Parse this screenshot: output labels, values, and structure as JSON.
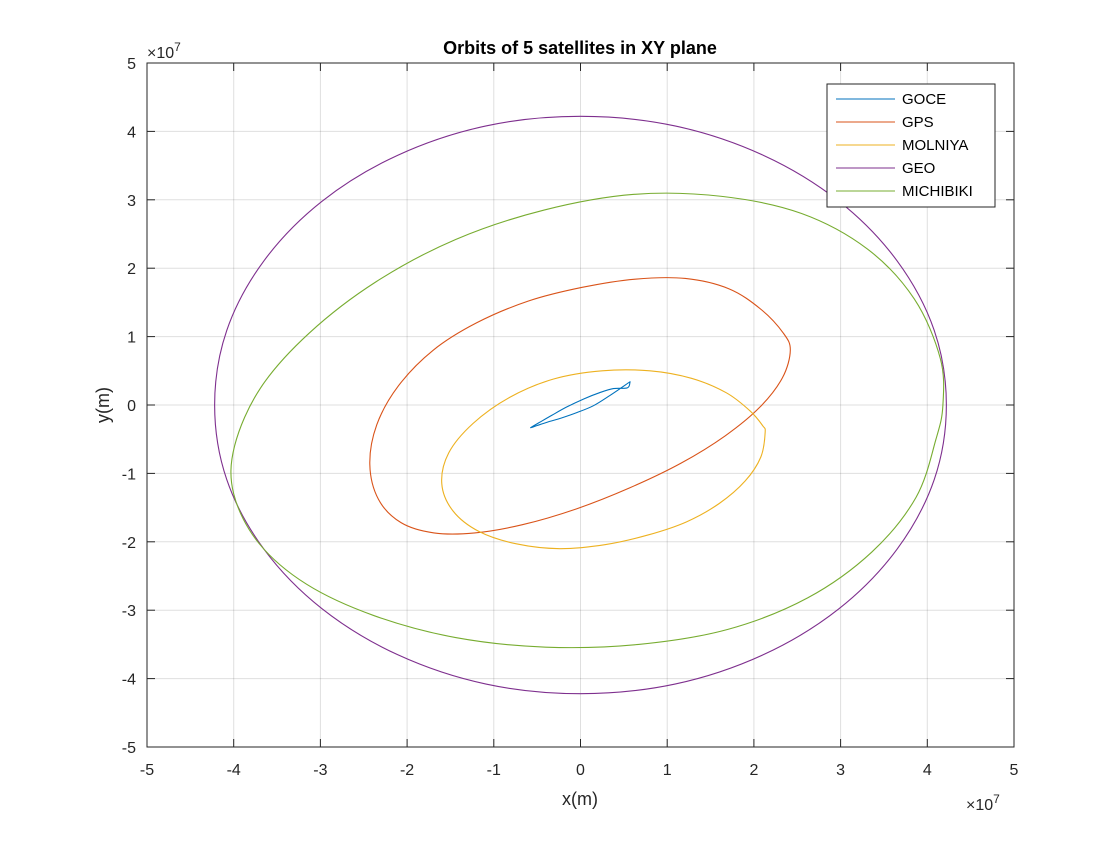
{
  "chart_data": {
    "type": "line",
    "title": "Orbits of 5 satellites in XY plane",
    "xlabel": "x(m)",
    "ylabel": "y(m)",
    "xlim": [
      -5,
      5
    ],
    "ylim": [
      -5,
      5
    ],
    "axis_scale_label": "×10",
    "axis_scale_exponent": "7",
    "x_ticks": [
      "-5",
      "-4",
      "-3",
      "-2",
      "-1",
      "0",
      "1",
      "2",
      "3",
      "4",
      "5"
    ],
    "y_ticks": [
      "-5",
      "-4",
      "-3",
      "-2",
      "-1",
      "0",
      "1",
      "2",
      "3",
      "4",
      "5"
    ],
    "grid": true,
    "legend_position": "top-right",
    "series": [
      {
        "name": "GOCE",
        "color": "#0072BD",
        "x": [
          0.54,
          0.57,
          0.56,
          0.48,
          0.34,
          0.15,
          -0.04,
          -0.22,
          -0.38,
          -0.5,
          -0.57,
          -0.56,
          -0.48,
          -0.33,
          -0.16,
          0.04,
          0.22,
          0.38,
          0.54
        ],
        "y": [
          0.25,
          0.33,
          0.33,
          0.26,
          0.14,
          -0.01,
          -0.11,
          -0.19,
          -0.25,
          -0.3,
          -0.33,
          -0.32,
          -0.26,
          -0.15,
          -0.03,
          0.09,
          0.18,
          0.24,
          0.25
        ]
      },
      {
        "name": "GPS",
        "color": "#D95319",
        "x": [
          2.42,
          2.33,
          2.07,
          1.67,
          1.16,
          0.57,
          -0.05,
          -0.67,
          -1.22,
          -1.69,
          -2.07,
          -2.33,
          -2.43,
          -2.35,
          -2.1,
          -1.7,
          -1.2,
          -0.6,
          0.02,
          0.63,
          1.21,
          1.71,
          2.08,
          2.34,
          2.42
        ],
        "y": [
          0.8,
          0.4,
          -0.03,
          -0.45,
          -0.85,
          -1.21,
          -1.52,
          -1.75,
          -1.87,
          -1.87,
          -1.72,
          -1.38,
          -0.87,
          -0.29,
          0.28,
          0.8,
          1.2,
          1.52,
          1.72,
          1.84,
          1.85,
          1.7,
          1.4,
          1.05,
          0.8
        ]
      },
      {
        "name": "MOLNIYA",
        "color": "#EDB120",
        "x": [
          2.13,
          2.08,
          1.9,
          1.6,
          1.22,
          0.78,
          0.29,
          -0.24,
          -0.74,
          -1.17,
          -1.47,
          -1.6,
          -1.52,
          -1.24,
          -0.82,
          -0.31,
          0.25,
          0.8,
          1.28,
          1.68,
          1.95,
          2.1,
          2.13
        ],
        "y": [
          -0.4,
          -0.76,
          -1.11,
          -1.44,
          -1.71,
          -1.9,
          -2.04,
          -2.1,
          -2.03,
          -1.85,
          -1.55,
          -1.15,
          -0.7,
          -0.27,
          0.11,
          0.38,
          0.5,
          0.5,
          0.39,
          0.18,
          -0.08,
          -0.3,
          -0.4
        ]
      },
      {
        "name": "GEO",
        "color": "#7E2F8E",
        "x": [
          4.22,
          4.08,
          3.65,
          2.98,
          2.11,
          1.09,
          0.0,
          -1.09,
          -2.11,
          -2.98,
          -3.65,
          -4.08,
          -4.22,
          -4.08,
          -3.65,
          -2.98,
          -2.11,
          -1.09,
          0.0,
          1.09,
          2.11,
          2.98,
          3.65,
          4.08,
          4.22
        ],
        "y": [
          0.0,
          -1.09,
          -2.11,
          -2.98,
          -3.65,
          -4.08,
          -4.22,
          -4.08,
          -3.65,
          -2.98,
          -2.11,
          -1.09,
          0.0,
          1.09,
          2.11,
          2.98,
          3.65,
          4.08,
          4.22,
          4.08,
          3.65,
          2.98,
          2.11,
          1.09,
          0.0
        ]
      },
      {
        "name": "MICHIBIKI",
        "color": "#77AC30",
        "x": [
          4.1,
          3.87,
          3.36,
          2.62,
          1.7,
          0.67,
          -0.4,
          -1.44,
          -2.38,
          -3.16,
          -3.71,
          -4.0,
          -3.99,
          -3.69,
          -3.13,
          -2.36,
          -1.44,
          -0.42,
          0.62,
          1.63,
          2.55,
          3.31,
          3.85,
          4.15,
          4.18,
          4.1
        ],
        "y": [
          -0.5,
          -1.35,
          -2.15,
          -2.82,
          -3.28,
          -3.5,
          -3.54,
          -3.4,
          -3.08,
          -2.62,
          -2.02,
          -1.3,
          -0.6,
          0.25,
          1.05,
          1.8,
          2.42,
          2.85,
          3.08,
          3.05,
          2.8,
          2.28,
          1.55,
          0.68,
          0.0,
          -0.5
        ]
      }
    ]
  }
}
